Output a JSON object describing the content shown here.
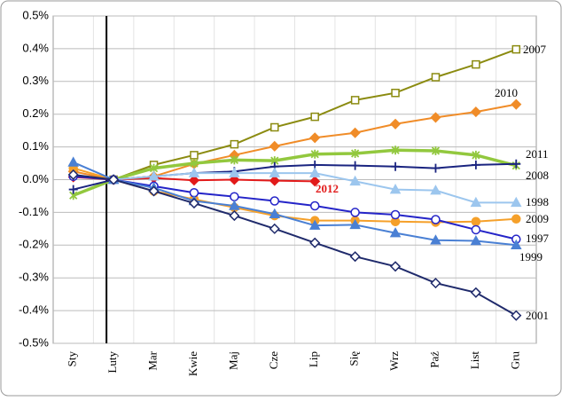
{
  "chart_data": {
    "type": "line",
    "categories": [
      "Sty",
      "Luty",
      "Mar",
      "Kwie",
      "Maj",
      "Cze",
      "Lip",
      "Się",
      "Wrz",
      "Paź",
      "List",
      "Gru"
    ],
    "ylim": [
      -0.5,
      0.5
    ],
    "yticks": [
      {
        "value": 0.5,
        "label": "0.5%"
      },
      {
        "value": 0.4,
        "label": "0.4%"
      },
      {
        "value": 0.3,
        "label": "0.3%"
      },
      {
        "value": 0.2,
        "label": "0.2%"
      },
      {
        "value": 0.1,
        "label": "0.1%"
      },
      {
        "value": 0,
        "label": "0.0%"
      },
      {
        "value": -0.1,
        "label": "-0.1%"
      },
      {
        "value": -0.2,
        "label": "-0.2%"
      },
      {
        "value": -0.3,
        "label": "-0.3%"
      },
      {
        "value": -0.4,
        "label": "-0.4%"
      },
      {
        "value": -0.5,
        "label": "-0.5%"
      }
    ],
    "grid": true,
    "series": [
      {
        "name": "2007",
        "color": "#8b8b10",
        "marker": "square-open",
        "values": [
          null,
          0,
          0.045,
          0.075,
          0.108,
          0.16,
          0.192,
          0.243,
          0.265,
          0.313,
          0.352,
          0.398
        ]
      },
      {
        "name": "2010",
        "color": "#f08c28",
        "marker": "diamond",
        "values": [
          0.025,
          0,
          0.01,
          0.048,
          0.075,
          0.102,
          0.128,
          0.143,
          0.17,
          0.19,
          0.207,
          0.23
        ]
      },
      {
        "name": "2011",
        "color": "#92c83e",
        "marker": "star",
        "values": [
          -0.048,
          0,
          0.035,
          0.05,
          0.06,
          0.058,
          0.078,
          0.08,
          0.09,
          0.088,
          0.075,
          0.043
        ]
      },
      {
        "name": "2008",
        "color": "#1a2480",
        "marker": "plus",
        "values": [
          -0.03,
          0,
          0.01,
          0.02,
          0.025,
          0.04,
          0.045,
          0.043,
          0.04,
          0.035,
          0.045,
          0.048
        ]
      },
      {
        "name": "2012",
        "color": "#e21a1a",
        "marker": "diamond",
        "values": [
          0.008,
          0,
          0.005,
          -0.002,
          0,
          -0.003,
          -0.005,
          null,
          null,
          null,
          null,
          null
        ]
      },
      {
        "name": "1998",
        "color": "#9cc6ee",
        "marker": "triangle",
        "values": [
          null,
          0,
          0.01,
          0.02,
          0.02,
          0.02,
          0.02,
          -0.005,
          -0.03,
          -0.033,
          -0.07,
          -0.07
        ]
      },
      {
        "name": "2009",
        "color": "#f5a02a",
        "marker": "circle",
        "values": [
          0.035,
          0,
          -0.035,
          -0.06,
          -0.085,
          -0.11,
          -0.125,
          -0.125,
          -0.128,
          -0.13,
          -0.128,
          -0.12
        ]
      },
      {
        "name": "1997",
        "color": "#2424c8",
        "marker": "circle-open",
        "values": [
          0.01,
          0,
          -0.02,
          -0.04,
          -0.052,
          -0.065,
          -0.08,
          -0.1,
          -0.107,
          -0.122,
          -0.153,
          -0.182
        ]
      },
      {
        "name": "1999",
        "color": "#4a80d4",
        "marker": "triangle",
        "values": [
          0.053,
          0,
          -0.025,
          -0.065,
          -0.08,
          -0.105,
          -0.14,
          -0.138,
          -0.163,
          -0.185,
          -0.187,
          -0.2
        ]
      },
      {
        "name": "2001",
        "color": "#1f2a6b",
        "marker": "diamond-open",
        "values": [
          0.015,
          0,
          -0.035,
          -0.072,
          -0.11,
          -0.15,
          -0.193,
          -0.235,
          -0.265,
          -0.316,
          -0.345,
          -0.415
        ]
      }
    ]
  }
}
